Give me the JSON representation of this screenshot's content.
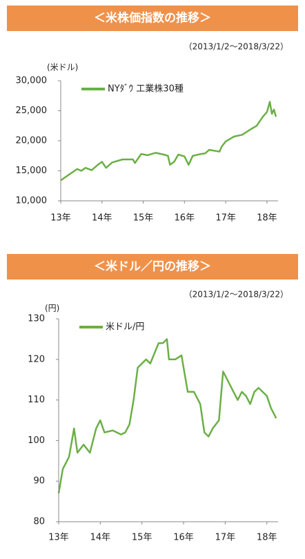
{
  "chart_data": [
    {
      "type": "line",
      "title": "＜米株価指数の推移＞",
      "subtitle": "（2013/1/2～2018/3/22）",
      "y_label": "(米ドル)",
      "legend": "upper left",
      "xlim": [
        2013.0,
        2018.27
      ],
      "xticks": [
        {
          "value": 2013,
          "label": "13年"
        },
        {
          "value": 2014,
          "label": "14年"
        },
        {
          "value": 2015,
          "label": "15年"
        },
        {
          "value": 2016,
          "label": "16年"
        },
        {
          "value": 2017,
          "label": "17年"
        },
        {
          "value": 2018,
          "label": "18年"
        }
      ],
      "ylim": [
        10000,
        30000
      ],
      "yticks": [
        {
          "value": 10000,
          "label": "10,000"
        },
        {
          "value": 15000,
          "label": "15,000"
        },
        {
          "value": 20000,
          "label": "20,000"
        },
        {
          "value": 25000,
          "label": "25,000"
        },
        {
          "value": 30000,
          "label": "30,000"
        }
      ],
      "x": [
        2013.0,
        2013.25,
        2013.4,
        2013.5,
        2013.6,
        2013.75,
        2013.9,
        2014.0,
        2014.1,
        2014.25,
        2014.5,
        2014.75,
        2014.8,
        2014.95,
        2015.1,
        2015.3,
        2015.5,
        2015.6,
        2015.65,
        2015.75,
        2015.85,
        2016.0,
        2016.1,
        2016.2,
        2016.4,
        2016.5,
        2016.6,
        2016.85,
        2016.9,
        2017.0,
        2017.2,
        2017.4,
        2017.6,
        2017.75,
        2017.9,
        2018.0,
        2018.07,
        2018.12,
        2018.17,
        2018.22
      ],
      "series": [
        {
          "name": "NYﾀﾞｳ 工業株30種",
          "color": "#6aaf45",
          "values": [
            13400,
            14600,
            15300,
            15000,
            15500,
            15100,
            16000,
            16500,
            15500,
            16400,
            16900,
            16900,
            16300,
            17800,
            17600,
            18000,
            17700,
            17500,
            16000,
            16500,
            17700,
            17400,
            16000,
            17500,
            17800,
            17900,
            18500,
            18200,
            19000,
            19900,
            20700,
            21000,
            21900,
            22500,
            24000,
            24800,
            26500,
            24500,
            25200,
            24000
          ]
        }
      ]
    },
    {
      "type": "line",
      "title": "＜米ドル／円の推移＞",
      "subtitle": "（2013/1/2～2018/3/22）",
      "y_label": "(円)",
      "legend": "upper left",
      "xlim": [
        2013.0,
        2018.27
      ],
      "xticks": [
        {
          "value": 2013,
          "label": "13年"
        },
        {
          "value": 2014,
          "label": "14年"
        },
        {
          "value": 2015,
          "label": "15年"
        },
        {
          "value": 2016,
          "label": "16年"
        },
        {
          "value": 2017,
          "label": "17年"
        },
        {
          "value": 2018,
          "label": "18年"
        }
      ],
      "ylim": [
        80,
        130
      ],
      "yticks": [
        80,
        90,
        100,
        110,
        120,
        130
      ],
      "x": [
        2013.0,
        2013.1,
        2013.25,
        2013.37,
        2013.45,
        2013.6,
        2013.75,
        2013.9,
        2014.0,
        2014.1,
        2014.3,
        2014.5,
        2014.6,
        2014.7,
        2014.8,
        2014.9,
        2015.0,
        2015.1,
        2015.2,
        2015.4,
        2015.5,
        2015.6,
        2015.65,
        2015.8,
        2015.95,
        2016.0,
        2016.1,
        2016.25,
        2016.4,
        2016.5,
        2016.6,
        2016.7,
        2016.85,
        2016.95,
        2017.0,
        2017.2,
        2017.3,
        2017.4,
        2017.5,
        2017.6,
        2017.7,
        2017.8,
        2018.0,
        2018.1,
        2018.2,
        2018.22
      ],
      "series": [
        {
          "name": "米ドル/円",
          "color": "#6aaf45",
          "values": [
            87,
            93,
            96,
            103,
            97,
            99,
            97,
            103,
            105,
            102,
            102.5,
            101.5,
            102,
            104,
            110,
            118,
            119,
            120,
            119,
            124,
            124,
            125,
            120,
            120,
            121,
            118,
            112,
            112,
            109,
            102,
            101,
            103,
            105,
            117,
            116,
            112,
            110,
            112,
            111,
            109,
            112,
            113,
            111,
            108,
            106,
            105.5
          ]
        }
      ]
    }
  ]
}
